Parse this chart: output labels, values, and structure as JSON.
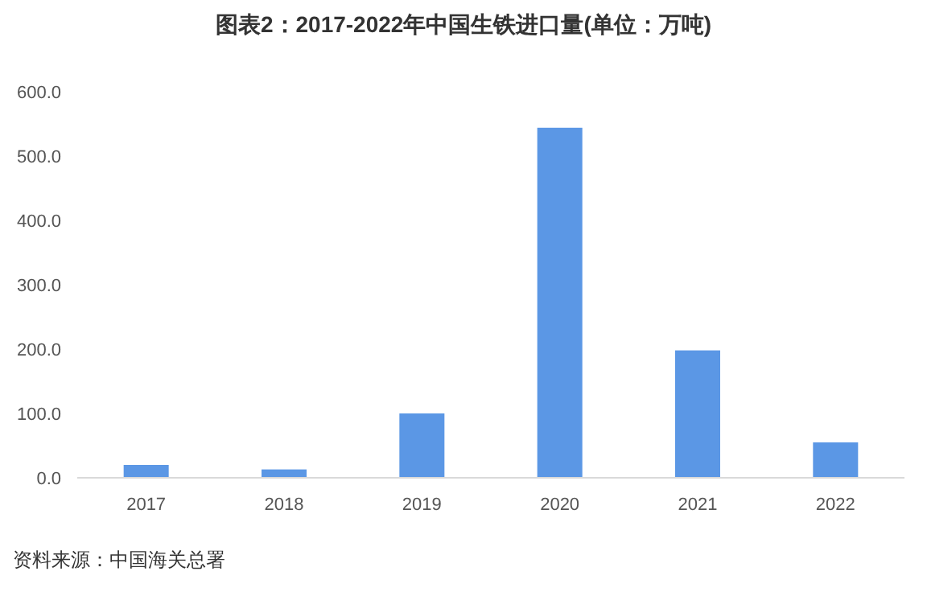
{
  "chart_data": {
    "type": "bar",
    "title": "图表2：2017-2022年中国生铁进口量(单位：万吨)",
    "categories": [
      "2017",
      "2018",
      "2019",
      "2020",
      "2021",
      "2022"
    ],
    "values": [
      20,
      13,
      100,
      544,
      198,
      55
    ],
    "color": "#5b97e5",
    "ylim": [
      0,
      600
    ],
    "yticks": [
      {
        "value": 0,
        "label": "0.0"
      },
      {
        "value": 100,
        "label": "100.0"
      },
      {
        "value": 200,
        "label": "200.0"
      },
      {
        "value": 300,
        "label": "300.0"
      },
      {
        "value": 400,
        "label": "400.0"
      },
      {
        "value": 500,
        "label": "500.0"
      },
      {
        "value": 600,
        "label": "600.0"
      }
    ],
    "grid": false,
    "annotations": [
      "资料来源：中国海关总署"
    ]
  }
}
